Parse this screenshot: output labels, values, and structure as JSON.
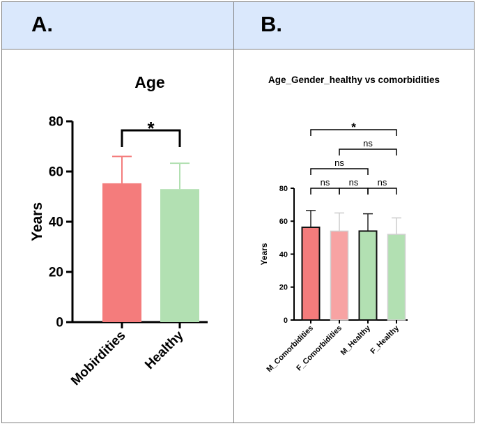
{
  "layout_colors": {
    "header_bg": "#dae8fc",
    "border": "#7f7f7f"
  },
  "panels": [
    {
      "letter": "A."
    },
    {
      "letter": "B."
    }
  ],
  "chart_data": [
    {
      "type": "bar",
      "title": "Age",
      "xlabel": "",
      "ylabel": "Years",
      "ylim": [
        0,
        80
      ],
      "yticks": [
        "0",
        "20",
        "40",
        "60",
        "80"
      ],
      "categories": [
        "Mobirdities",
        "Healthy"
      ],
      "values": [
        55.3,
        53.0
      ],
      "error_upper": [
        66.0,
        63.3
      ],
      "colors": [
        "#f47c7c",
        "#b2e0b2"
      ],
      "error_colors": [
        "#f47c7c",
        "#b2e0b2"
      ],
      "significance": [
        {
          "from": 0,
          "to": 1,
          "label": "*"
        }
      ]
    },
    {
      "type": "bar",
      "title": "Age_Gender_healthy vs comorbidities",
      "xlabel": "",
      "ylabel": "Years",
      "ylim": [
        0,
        80
      ],
      "yticks": [
        "0",
        "20",
        "40",
        "60",
        "80"
      ],
      "categories": [
        "M_Comorbidities",
        "F_Comorbidities",
        "M_Healthy",
        "F_Healthy"
      ],
      "values": [
        56.3,
        54.0,
        54.0,
        52.0
      ],
      "error_upper": [
        66.5,
        65.0,
        64.5,
        62.0
      ],
      "colors": [
        "#f47c7c",
        "#f7a3a3",
        "#b2e0b2",
        "#b2e0b2"
      ],
      "outlined": [
        true,
        false,
        true,
        false
      ],
      "error_colors": [
        "#222222",
        "#cccccc",
        "#222222",
        "#cccccc"
      ],
      "significance": [
        {
          "from": 0,
          "to": 1,
          "label": "ns",
          "level": 0
        },
        {
          "from": 1,
          "to": 2,
          "label": "ns",
          "level": 0
        },
        {
          "from": 2,
          "to": 3,
          "label": "ns",
          "level": 0
        },
        {
          "from": 0,
          "to": 2,
          "label": "ns",
          "level": 1
        },
        {
          "from": 1,
          "to": 3,
          "label": "ns",
          "level": 2
        },
        {
          "from": 0,
          "to": 3,
          "label": "*",
          "level": 3
        }
      ]
    }
  ]
}
